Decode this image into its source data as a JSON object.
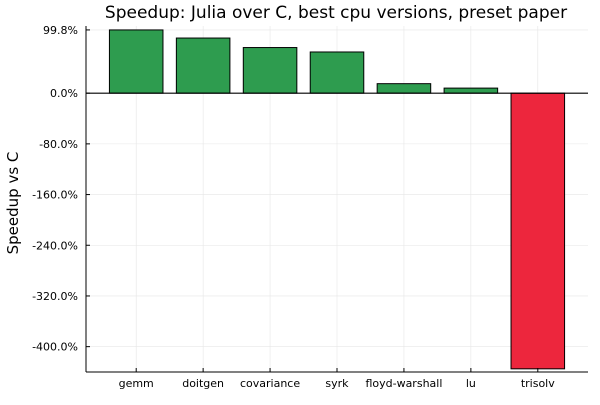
{
  "chart_data": {
    "type": "bar",
    "title": "Speedup: Julia over C, best cpu versions, preset paper",
    "xlabel": "",
    "ylabel": "Speedup vs C",
    "categories": [
      "gemm",
      "doitgen",
      "covariance",
      "syrk",
      "floyd-warshall",
      "lu",
      "trisolv"
    ],
    "values": [
      99.8,
      87.0,
      72.0,
      65.0,
      15.0,
      8.0,
      -435.0
    ],
    "ylim": [
      -440.0,
      106.0
    ],
    "yticks": [
      -400.0,
      -320.0,
      -240.0,
      -160.0,
      -80.0,
      0.0,
      99.8
    ],
    "ytick_labels": [
      "-400.0%",
      "-320.0%",
      "-240.0%",
      "-160.0%",
      "-80.0%",
      "0.0%",
      "99.8%"
    ],
    "grid": true,
    "legend": "none",
    "colors": {
      "positive": "#2e9c4f",
      "negative": "#ed263d",
      "outline": "#000000",
      "grid": "#e6e6e6"
    }
  }
}
